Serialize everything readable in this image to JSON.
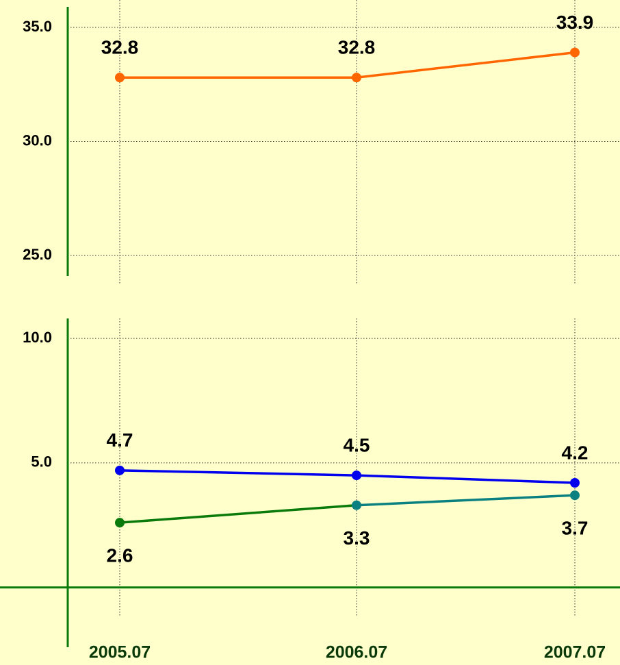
{
  "chart_data": [
    {
      "type": "line",
      "ylim": [
        24.1,
        35.9
      ],
      "yticks": [
        {
          "value": 25,
          "label": "25.0"
        },
        {
          "value": 30,
          "label": "30.0"
        },
        {
          "value": 35,
          "label": "35.0"
        }
      ],
      "grid": true,
      "series": [
        {
          "color": "#ff6600",
          "values": [
            32.8,
            32.8,
            33.9
          ],
          "label_position": "above"
        }
      ]
    },
    {
      "type": "line",
      "categories": [
        "2005.07",
        "2006.07",
        "2007.07"
      ],
      "ylim": [
        -2.4,
        10.8
      ],
      "yticks": [
        {
          "value": 5,
          "label": "5.0"
        },
        {
          "value": 10,
          "label": "10.0"
        }
      ],
      "grid": true,
      "series": [
        {
          "color": "#0000ee",
          "values": [
            4.7,
            4.5,
            4.2
          ],
          "label_position": "above"
        },
        {
          "color": "#0a7a0a",
          "point_colors": [
            "#0a7a0a",
            "#0a8080",
            "#0a8080"
          ],
          "values": [
            2.6,
            3.3,
            3.7
          ],
          "label_position": "below"
        }
      ]
    }
  ]
}
